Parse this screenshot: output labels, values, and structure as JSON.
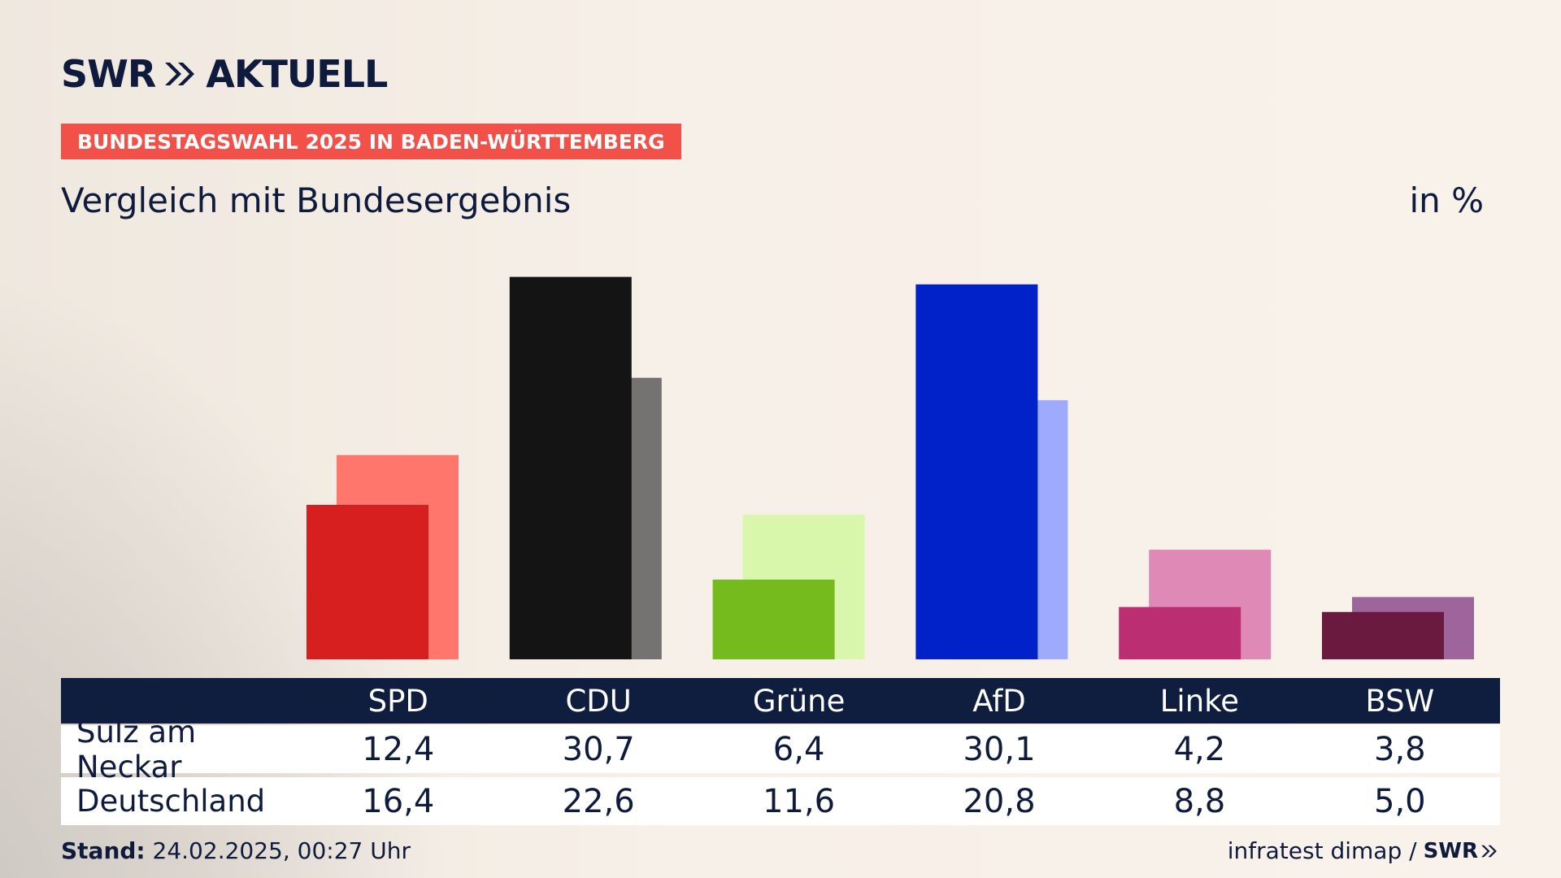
{
  "header": {
    "brand": "SWR",
    "brand_suffix": "AKTUELL",
    "banner": "BUNDESTAGSWAHL 2025 IN BADEN-WÜRTTEMBERG",
    "subtitle": "Vergleich mit Bundesergebnis",
    "unit": "in %"
  },
  "chart_data": {
    "type": "bar",
    "title": "Vergleich mit Bundesergebnis",
    "unit": "in %",
    "categories": [
      "SPD",
      "CDU",
      "Grüne",
      "AfD",
      "Linke",
      "BSW"
    ],
    "series": [
      {
        "name": "Sulz am Neckar",
        "values": [
          12.4,
          30.7,
          6.4,
          30.1,
          4.2,
          3.8
        ],
        "colors": [
          "#d81f1f",
          "#141414",
          "#76bb1e",
          "#0022c8",
          "#bb2e72",
          "#6a1a3f"
        ]
      },
      {
        "name": "Deutschland",
        "values": [
          16.4,
          22.6,
          11.6,
          20.8,
          8.8,
          5.0
        ],
        "colors": [
          "#ff766c",
          "#757372",
          "#d8f7aa",
          "#9eabfc",
          "#df8ab6",
          "#9e659c"
        ]
      }
    ],
    "ylim": [
      0,
      31
    ],
    "grid": false,
    "legend": "none"
  },
  "table": {
    "headers": [
      "SPD",
      "CDU",
      "Grüne",
      "AfD",
      "Linke",
      "BSW"
    ],
    "rows": [
      {
        "label": "Sulz am Neckar",
        "values": [
          "12,4",
          "30,7",
          "6,4",
          "30,1",
          "4,2",
          "3,8"
        ]
      },
      {
        "label": "Deutschland",
        "values": [
          "16,4",
          "22,6",
          "11,6",
          "20,8",
          "8,8",
          "5,0"
        ]
      }
    ]
  },
  "footer": {
    "stand_label": "Stand:",
    "stand_value": "24.02.2025, 00:27 Uhr",
    "source": "infratest dimap /",
    "source_brand": "SWR"
  }
}
